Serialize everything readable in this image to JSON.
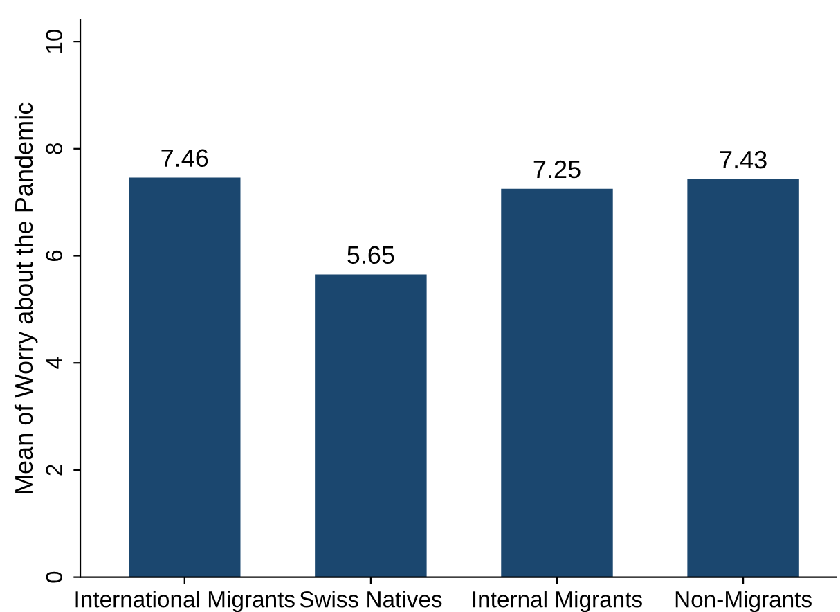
{
  "chart_data": {
    "type": "bar",
    "ylabel": "Mean of Worry about the Pandemic",
    "categories": [
      "International Migrants",
      "Swiss Natives",
      "Internal Migrants",
      "Non-Migrants"
    ],
    "values": [
      7.46,
      5.65,
      7.25,
      7.43
    ],
    "color": "#1b476f",
    "ylim": [
      0,
      10.4
    ],
    "yticks": [
      0,
      2,
      4,
      6,
      8,
      10
    ],
    "grid": false,
    "data_labels": true
  }
}
